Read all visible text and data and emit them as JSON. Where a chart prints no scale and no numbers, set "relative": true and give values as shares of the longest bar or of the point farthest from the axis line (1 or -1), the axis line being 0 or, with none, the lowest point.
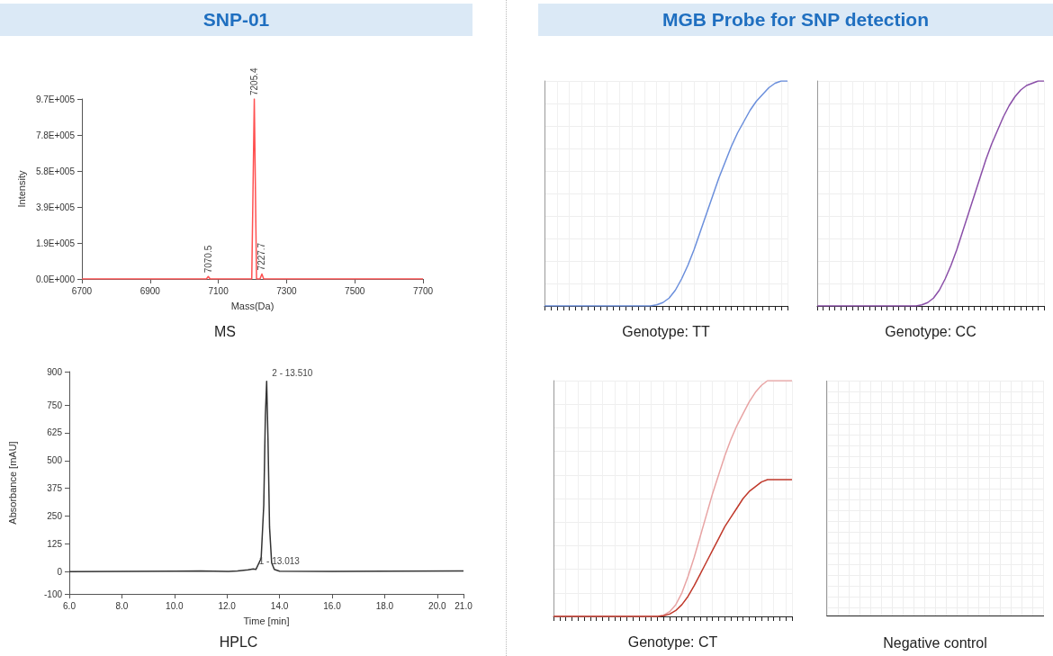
{
  "chart_data": [
    {
      "type": "other",
      "title": "SNP-01"
    },
    {
      "type": "line",
      "title": "MS",
      "xlabel": "Mass(Da)",
      "ylabel": "Intensity",
      "marker": "none",
      "grid": false,
      "x": [
        6700,
        7065,
        7070.5,
        7076,
        7198,
        7205.4,
        7212,
        7222,
        7227.7,
        7233,
        7700
      ],
      "series": [
        {
          "color": "#ff5050",
          "values": [
            0,
            0,
            13000,
            0,
            0,
            970000,
            0,
            0,
            27000,
            0,
            0
          ]
        }
      ],
      "xlim": [
        6700,
        7700
      ],
      "xticks": [
        6700,
        6900,
        7100,
        7300,
        7500,
        7700
      ],
      "ylim": [
        0,
        970000
      ],
      "yticks": [
        {
          "value": 0,
          "label": "0.0E+000"
        },
        {
          "value": 194000,
          "label": "1.9E+005"
        },
        {
          "value": 388000,
          "label": "3.9E+005"
        },
        {
          "value": 582000,
          "label": "5.8E+005"
        },
        {
          "value": 776000,
          "label": "7.8E+005"
        },
        {
          "value": 970000,
          "label": "9.7E+005"
        }
      ],
      "annotations": [
        {
          "text": "7070.5",
          "x": 7070.5,
          "y": 13000
        },
        {
          "text": "7205.4",
          "x": 7205.4,
          "y": 970000
        },
        {
          "text": "7227.7",
          "x": 7227.7,
          "y": 27000
        }
      ]
    },
    {
      "type": "line",
      "title": "HPLC",
      "xlabel": "Time [min]",
      "ylabel": "Absorbance [mAU]",
      "marker": "none",
      "grid": false,
      "x": [
        6,
        8,
        10,
        11,
        12,
        12.4,
        12.8,
        13.0,
        13.1,
        13.3,
        13.4,
        13.46,
        13.51,
        13.56,
        13.62,
        13.7,
        13.8,
        14.0,
        16,
        18,
        21
      ],
      "series": [
        {
          "color": "#333333",
          "values": [
            0,
            1,
            2,
            3,
            1,
            3,
            8,
            12,
            10,
            60,
            300,
            700,
            856,
            600,
            200,
            40,
            10,
            2,
            1,
            2,
            3
          ]
        }
      ],
      "xlim": [
        6,
        21
      ],
      "xticks": [
        {
          "value": 6,
          "label": "6.0"
        },
        {
          "value": 8,
          "label": "8.0"
        },
        {
          "value": 10,
          "label": "10.0"
        },
        {
          "value": 12,
          "label": "12.0"
        },
        {
          "value": 14,
          "label": "14.0"
        },
        {
          "value": 16,
          "label": "16.0"
        },
        {
          "value": 18,
          "label": "18.0"
        },
        {
          "value": 20,
          "label": "20.0"
        },
        {
          "value": 21,
          "label": "21.0"
        }
      ],
      "ylim": [
        -100,
        900
      ],
      "yticks": [
        -100,
        0,
        125,
        250,
        375,
        500,
        625,
        750,
        900
      ],
      "annotations": [
        {
          "text": "2 - 13.510",
          "x": 13.51,
          "y": 856
        },
        {
          "text": "1 - 13.013",
          "x": 13.013,
          "y": 12
        }
      ]
    },
    {
      "type": "other",
      "title": "MGB Probe for SNP detection"
    },
    {
      "type": "line",
      "title": "Genotype: TT",
      "relative": true,
      "marker": "none",
      "grid": true,
      "categories": [
        null,
        null,
        null,
        null,
        null,
        null,
        null,
        null,
        null,
        null,
        null,
        null,
        null,
        null,
        null,
        null,
        null,
        null,
        null,
        null,
        null,
        null,
        null,
        null,
        null,
        null,
        null,
        null,
        null,
        null,
        null,
        null,
        null,
        null,
        null,
        null,
        null,
        null,
        null,
        null
      ],
      "series": [
        {
          "color": "#6b8fdc",
          "values": [
            0,
            0,
            0,
            0,
            0,
            0,
            0,
            0,
            0,
            0,
            0,
            0,
            0,
            0,
            0,
            0,
            0,
            0,
            0.005,
            0.015,
            0.035,
            0.07,
            0.12,
            0.18,
            0.25,
            0.33,
            0.41,
            0.49,
            0.57,
            0.64,
            0.71,
            0.77,
            0.82,
            0.87,
            0.91,
            0.94,
            0.97,
            0.99,
            1.0,
            1.0
          ]
        }
      ]
    },
    {
      "type": "line",
      "title": "Genotype: CC",
      "relative": true,
      "marker": "none",
      "grid": true,
      "categories": [
        null,
        null,
        null,
        null,
        null,
        null,
        null,
        null,
        null,
        null,
        null,
        null,
        null,
        null,
        null,
        null,
        null,
        null,
        null,
        null,
        null,
        null,
        null,
        null,
        null,
        null,
        null,
        null,
        null,
        null,
        null,
        null,
        null,
        null,
        null,
        null,
        null,
        null,
        null,
        null
      ],
      "series": [
        {
          "color": "#8a4fa8",
          "values": [
            0,
            0,
            0,
            0,
            0,
            0,
            0,
            0,
            0,
            0,
            0,
            0,
            0,
            0,
            0,
            0,
            0,
            0,
            0.005,
            0.015,
            0.035,
            0.07,
            0.12,
            0.18,
            0.25,
            0.33,
            0.41,
            0.49,
            0.57,
            0.65,
            0.72,
            0.78,
            0.84,
            0.89,
            0.93,
            0.96,
            0.98,
            0.99,
            1.0,
            1.0
          ]
        }
      ]
    },
    {
      "type": "line",
      "title": "Genotype: CT",
      "relative": true,
      "marker": "none",
      "grid": true,
      "categories": [
        null,
        null,
        null,
        null,
        null,
        null,
        null,
        null,
        null,
        null,
        null,
        null,
        null,
        null,
        null,
        null,
        null,
        null,
        null,
        null,
        null,
        null,
        null,
        null,
        null,
        null,
        null,
        null,
        null,
        null,
        null,
        null,
        null,
        null,
        null,
        null,
        null,
        null,
        null,
        null
      ],
      "series": [
        {
          "color": "#e8a4a4",
          "values": [
            0,
            0,
            0,
            0,
            0,
            0,
            0,
            0,
            0,
            0,
            0,
            0,
            0,
            0,
            0,
            0,
            0,
            0,
            0.005,
            0.02,
            0.05,
            0.1,
            0.17,
            0.25,
            0.34,
            0.43,
            0.52,
            0.6,
            0.68,
            0.75,
            0.81,
            0.86,
            0.91,
            0.95,
            0.98,
            1.0,
            1.0,
            1.0,
            1.0,
            1.0
          ]
        },
        {
          "color": "#c0392b",
          "values": [
            0,
            0,
            0,
            0,
            0,
            0,
            0,
            0,
            0,
            0,
            0,
            0,
            0,
            0,
            0,
            0,
            0,
            0,
            0.003,
            0.01,
            0.025,
            0.05,
            0.085,
            0.13,
            0.18,
            0.23,
            0.28,
            0.33,
            0.38,
            0.42,
            0.46,
            0.5,
            0.53,
            0.55,
            0.57,
            0.58,
            0.58,
            0.58,
            0.58,
            0.58
          ]
        }
      ]
    },
    {
      "type": "other",
      "title": "Negative control"
    }
  ]
}
